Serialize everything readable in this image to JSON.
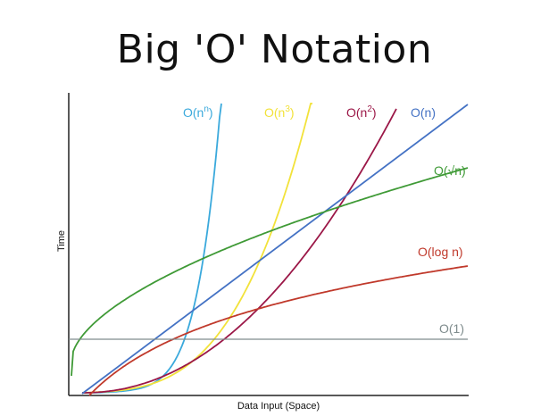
{
  "chart_data": {
    "type": "line",
    "title": "Big 'O' Notation",
    "xlabel": "Data Input (Space)",
    "ylabel": "Time",
    "grid": false,
    "series": [
      {
        "name": "O(nⁿ)",
        "label_base": "O(n",
        "label_sup": "n",
        "label_tail": ")",
        "color": "#3aa9dc"
      },
      {
        "name": "O(n³)",
        "label_base": "O(n",
        "label_sup": "3",
        "label_tail": ")",
        "color": "#f2e23a"
      },
      {
        "name": "O(n²)",
        "label_base": "O(n",
        "label_sup": "2",
        "label_tail": ")",
        "color": "#9b1747"
      },
      {
        "name": "O(n)",
        "label_base": "O(n)",
        "label_sup": "",
        "label_tail": "",
        "color": "#4472c4"
      },
      {
        "name": "O(√n)",
        "label_base": "O(√n)",
        "label_sup": "",
        "label_tail": "",
        "color": "#3f9a36"
      },
      {
        "name": "O(log n)",
        "label_base": "O(log n)",
        "label_sup": "",
        "label_tail": "",
        "color": "#c0392b"
      },
      {
        "name": "O(1)",
        "label_base": "O(1)",
        "label_sup": "",
        "label_tail": "",
        "color": "#7f8c8d"
      }
    ]
  }
}
